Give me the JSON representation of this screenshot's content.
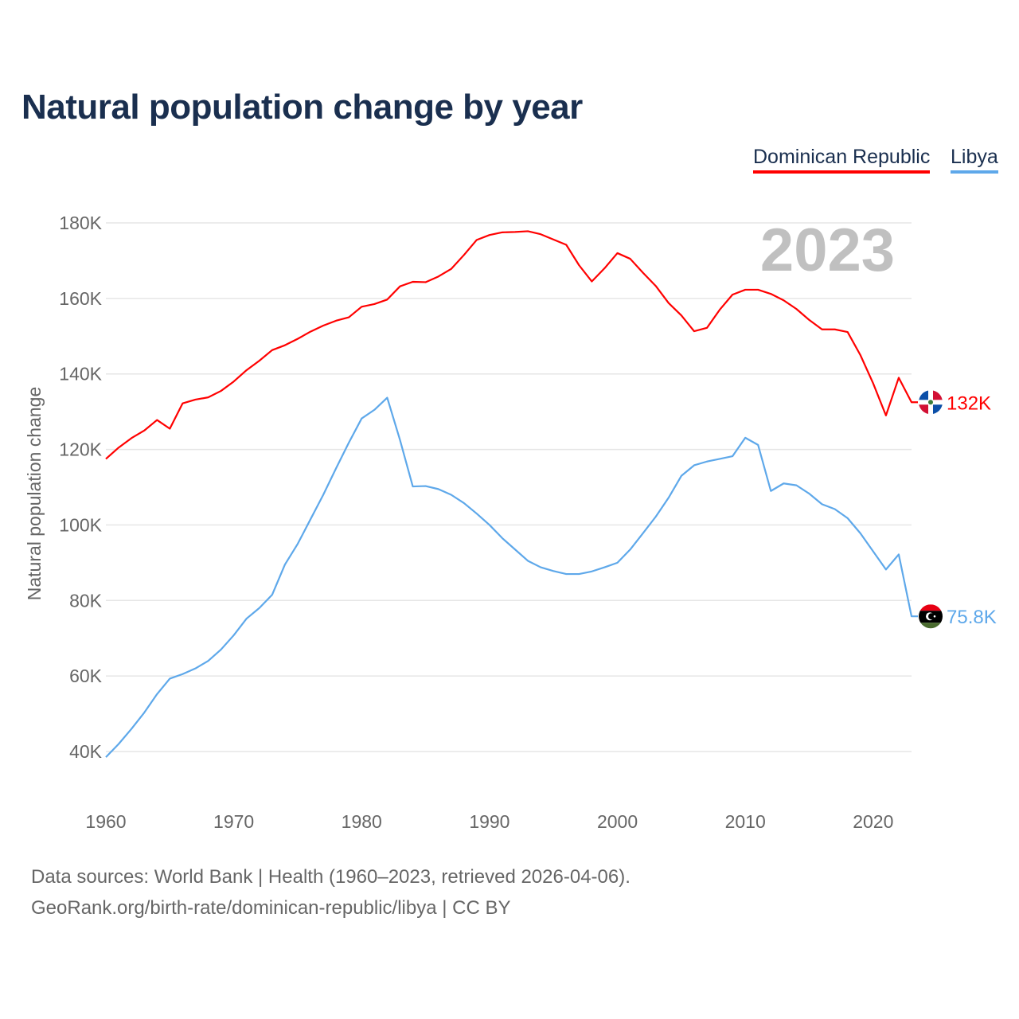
{
  "chart_data": {
    "type": "line",
    "title": "Natural population change by year",
    "ylabel": "Natural population change",
    "xlabel": "",
    "xlim": [
      1960,
      2023
    ],
    "ylim": [
      40000,
      180000
    ],
    "grid": true,
    "legend_position": "top-right",
    "year_watermark": "2023",
    "x_ticks": [
      "1960",
      "1970",
      "1980",
      "1990",
      "2000",
      "2010",
      "2020"
    ],
    "y_ticks": [
      {
        "value": 40000,
        "label": "40K"
      },
      {
        "value": 60000,
        "label": "60K"
      },
      {
        "value": 80000,
        "label": "80K"
      },
      {
        "value": 100000,
        "label": "100K"
      },
      {
        "value": 120000,
        "label": "120K"
      },
      {
        "value": 140000,
        "label": "140K"
      },
      {
        "value": 160000,
        "label": "160K"
      },
      {
        "value": 180000,
        "label": "180K"
      }
    ],
    "x": [
      1960,
      1961,
      1962,
      1963,
      1964,
      1965,
      1966,
      1967,
      1968,
      1969,
      1970,
      1971,
      1972,
      1973,
      1974,
      1975,
      1976,
      1977,
      1978,
      1979,
      1980,
      1981,
      1982,
      1983,
      1984,
      1985,
      1986,
      1987,
      1988,
      1989,
      1990,
      1991,
      1992,
      1993,
      1994,
      1995,
      1996,
      1997,
      1998,
      1999,
      2000,
      2001,
      2002,
      2003,
      2004,
      2005,
      2006,
      2007,
      2008,
      2009,
      2010,
      2011,
      2012,
      2013,
      2014,
      2015,
      2016,
      2017,
      2018,
      2019,
      2020,
      2021,
      2022,
      2023
    ],
    "series": [
      {
        "name": "Dominican Republic",
        "color": "#ff0000",
        "end_label": "132K",
        "flag": "dominican-republic-flag",
        "values": [
          117.5,
          120.5,
          123,
          125,
          127.8,
          125.5,
          132.2,
          133.2,
          133.8,
          135.5,
          138,
          141,
          143.5,
          146.3,
          147.6,
          149.3,
          151.2,
          152.8,
          154.1,
          155,
          157.8,
          158.5,
          159.7,
          163.2,
          164.4,
          164.3,
          165.8,
          167.8,
          171.5,
          175.5,
          176.8,
          177.5,
          177.6,
          177.8,
          177,
          175.6,
          174.2,
          168.8,
          164.5,
          168,
          172,
          170.5,
          166.8,
          163.3,
          158.8,
          155.5,
          151.3,
          152.2,
          157,
          161,
          162.3,
          162.3,
          161.2,
          159.5,
          157.2,
          154.3,
          151.8,
          151.8,
          151.1,
          145,
          137.5,
          129,
          139,
          132.5
        ],
        "value_unit": "thousands"
      },
      {
        "name": "Libya",
        "color": "#5ea8ea",
        "end_label": "75.8K",
        "flag": "libya-flag",
        "values": [
          38.5,
          42,
          46,
          50.3,
          55.2,
          59.3,
          60.5,
          62,
          64,
          67,
          70.8,
          75.2,
          78,
          81.5,
          89.5,
          95,
          101.5,
          108,
          115,
          121.8,
          128.2,
          130.5,
          133.7,
          122.5,
          110.2,
          110.3,
          109.5,
          108,
          105.8,
          103,
          100,
          96.5,
          93.5,
          90.5,
          88.8,
          87.8,
          87,
          87,
          87.7,
          88.8,
          90,
          93.5,
          97.8,
          102.2,
          107.2,
          113,
          115.8,
          116.8,
          117.5,
          118.2,
          123.1,
          121.2,
          109,
          111,
          110.5,
          108.3,
          105.5,
          104.2,
          101.8,
          97.8,
          93,
          88.2,
          92.2,
          75.8
        ],
        "value_unit": "thousands"
      }
    ]
  },
  "footer": {
    "line1": "Data sources: World Bank | Health (1960–2023, retrieved 2026-04-06).",
    "line2": "GeoRank.org/birth-rate/dominican-republic/libya | CC BY"
  }
}
